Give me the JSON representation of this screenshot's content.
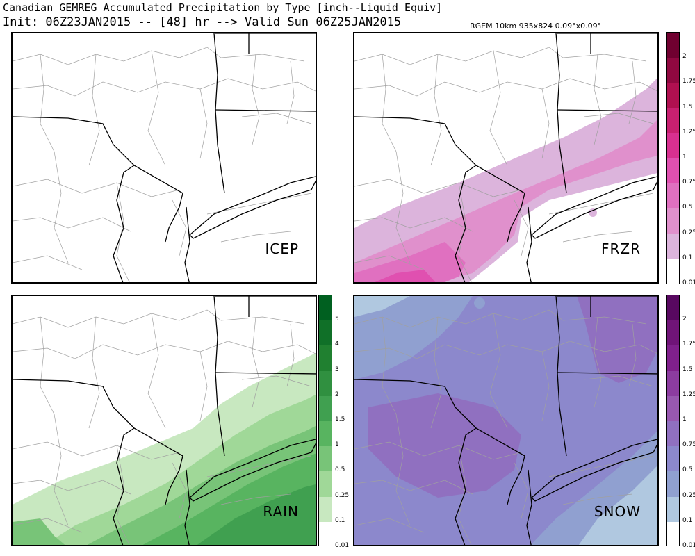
{
  "header": {
    "title": "Canadian GEMREG Accumulated Precipitation by Type [inch--Liquid Equiv]",
    "subtitle": "Init: 06Z23JAN2015 -- [48] hr --> Valid Sun 06Z25JAN2015",
    "model_info": "RGEM 10km 935x824 0.09°x0.09°"
  },
  "panels": [
    {
      "label": "ICEP"
    },
    {
      "label": "FRZR"
    },
    {
      "label": "RAIN"
    },
    {
      "label": "SNOW"
    }
  ],
  "legends": {
    "frzr": {
      "levels": [
        "0.01",
        "0.1",
        "0.25",
        "0.5",
        "0.75",
        "1",
        "1.25",
        "1.5",
        "1.75",
        "2"
      ],
      "colors": [
        "#ffffff",
        "#dcb4dc",
        "#e090cc",
        "#e070c0",
        "#e050b0",
        "#d83090",
        "#c82070",
        "#b01050",
        "#900840",
        "#700030"
      ]
    },
    "rain": {
      "levels": [
        "0.01",
        "0.1",
        "0.25",
        "0.5",
        "1",
        "1.5",
        "2",
        "3",
        "4",
        "5"
      ],
      "colors": [
        "#ffffff",
        "#c8e8c0",
        "#a0d898",
        "#78c478",
        "#58b460",
        "#40a050",
        "#309040",
        "#208030",
        "#107028",
        "#006020"
      ]
    },
    "snow": {
      "levels": [
        "0.01",
        "0.1",
        "0.25",
        "0.5",
        "0.75",
        "1",
        "1.25",
        "1.5",
        "1.75",
        "2"
      ],
      "colors": [
        "#ffffff",
        "#b0c8e0",
        "#90a0d0",
        "#8c88cc",
        "#9070c0",
        "#9858b0",
        "#8c3ca0",
        "#80208c",
        "#701478",
        "#580860"
      ]
    }
  }
}
